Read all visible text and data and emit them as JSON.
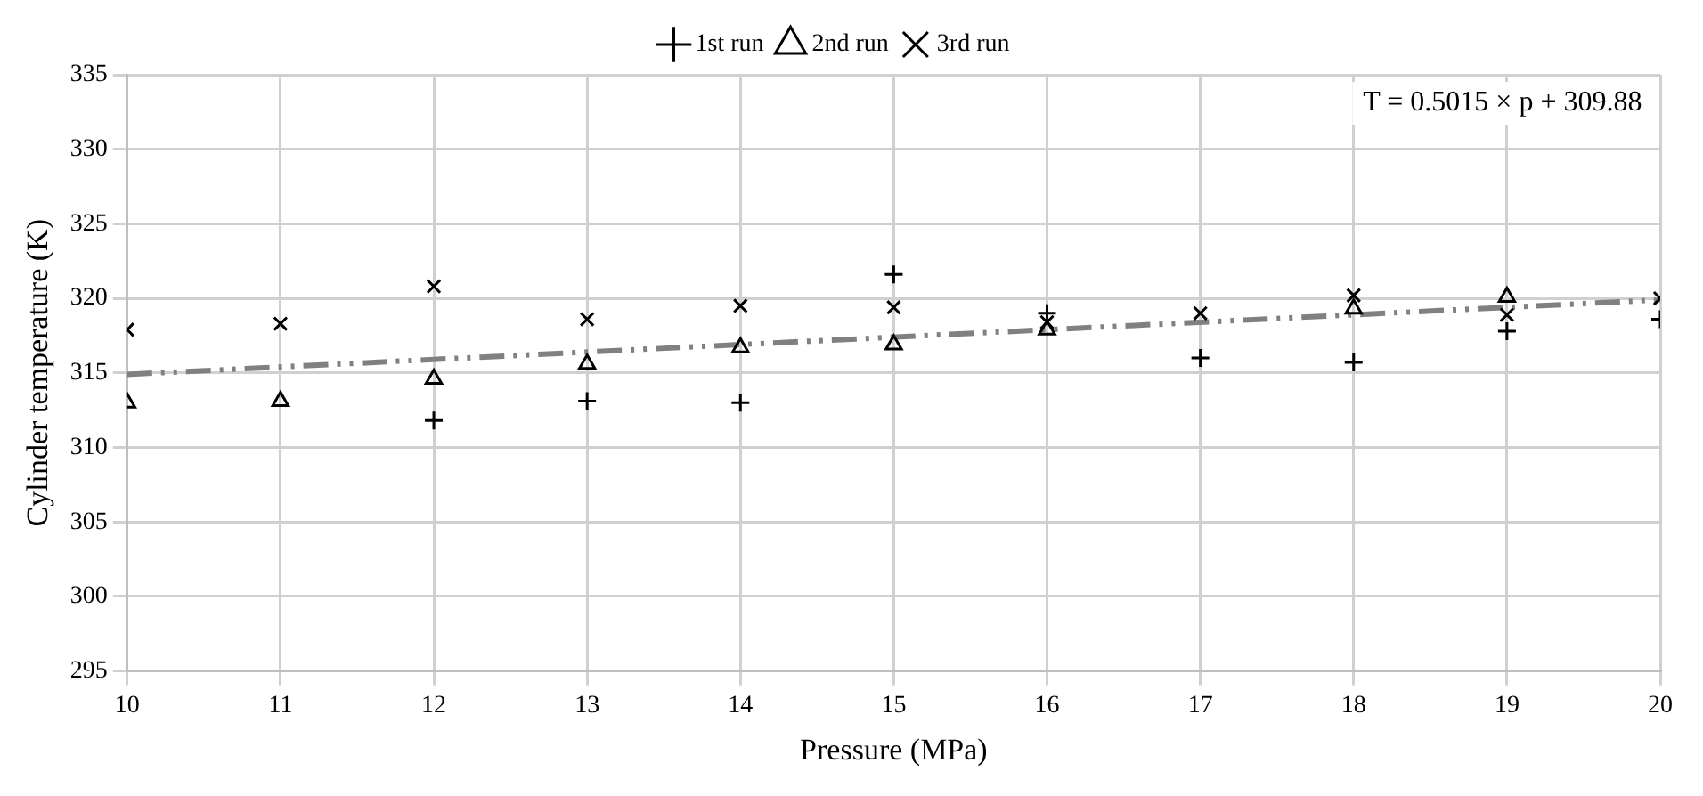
{
  "chart_data": {
    "type": "scatter",
    "xlabel": "Pressure (MPa)",
    "ylabel": "Cylinder temperature (K)",
    "xlim": [
      10,
      20
    ],
    "xticks": [
      10,
      11,
      12,
      13,
      14,
      15,
      16,
      17,
      18,
      19,
      20
    ],
    "ylim": [
      295,
      335
    ],
    "yticks": [
      295,
      300,
      305,
      310,
      315,
      320,
      325,
      330,
      335
    ],
    "grid": true,
    "legend": "top",
    "x": [
      10,
      11,
      12,
      13,
      14,
      15,
      16,
      17,
      18,
      19,
      20
    ],
    "series": [
      {
        "name": "1st run",
        "color": "#000000",
        "marker": "cross",
        "values": [
          null,
          null,
          311.8,
          313.1,
          313.0,
          321.6,
          319.0,
          316.0,
          315.7,
          317.8,
          318.6
        ]
      },
      {
        "name": "2nd run",
        "color": "#000000",
        "marker": "triangle",
        "values": [
          313.0,
          313.1,
          314.6,
          315.6,
          316.7,
          316.9,
          317.9,
          null,
          319.3,
          320.1,
          null
        ]
      },
      {
        "name": "3rd run",
        "color": "#000000",
        "marker": "x",
        "values": [
          317.9,
          318.3,
          320.8,
          318.6,
          319.5,
          319.4,
          318.4,
          319.0,
          320.2,
          318.9,
          320.0
        ]
      },
      {
        "type": "line",
        "color": "#808080",
        "line_style": "dashed",
        "marker": "none",
        "x": [
          10,
          20
        ],
        "values": [
          314.9,
          319.9
        ]
      }
    ],
    "annotations": [
      "T = 0.5015 × p + 309.88"
    ]
  }
}
